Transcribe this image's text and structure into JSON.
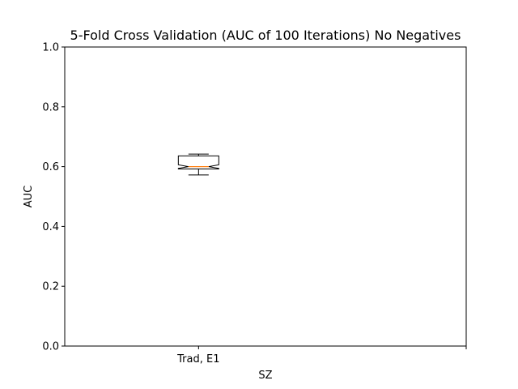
{
  "chart_data": {
    "type": "box",
    "title": "5-Fold Cross Validation (AUC of 100 Iterations) No Negatives",
    "xlabel": "SZ",
    "ylabel": "AUC",
    "ylim": [
      0,
      1
    ],
    "yticks": [
      "0.0",
      "0.2",
      "0.4",
      "0.6",
      "0.8",
      "1.0"
    ],
    "xlim": [
      0,
      3
    ],
    "categories": [
      "Trad, E1"
    ],
    "boxes": [
      {
        "name": "Trad, E1",
        "position": 1,
        "whisker_low": 0.572,
        "q1": 0.592,
        "notch_low": 0.594,
        "median": 0.6,
        "notch_high": 0.606,
        "q3": 0.636,
        "whisker_high": 0.642
      }
    ],
    "notched": true,
    "grid": false,
    "colors": {
      "box": "#000000",
      "median": "#ff7f0e",
      "axes": "#000000"
    }
  }
}
